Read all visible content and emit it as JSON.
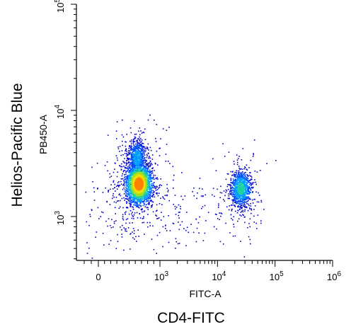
{
  "chart_data": {
    "type": "scatter",
    "title": "",
    "outer_xlabel": "CD4-FITC",
    "outer_ylabel": "Helios-Pacific Blue",
    "xlabel": "FITC-A",
    "ylabel": "PB450-A",
    "x_scale": "biexponential",
    "y_scale": "log",
    "xlim": [
      -300,
      1000000
    ],
    "ylim": [
      400,
      10000
    ],
    "x_ticks": [
      {
        "value": 0,
        "base": "0",
        "exp": ""
      },
      {
        "value": 1000,
        "base": "10",
        "exp": "3"
      },
      {
        "value": 10000,
        "base": "10",
        "exp": "4"
      },
      {
        "value": 100000,
        "base": "10",
        "exp": "5"
      },
      {
        "value": 1000000,
        "base": "10",
        "exp": "6"
      }
    ],
    "y_ticks": [
      {
        "value": 1000,
        "base": "10",
        "exp": "3"
      },
      {
        "value": 10000,
        "base": "10",
        "exp": "4"
      },
      {
        "value": 100000,
        "base": "10",
        "exp": "5"
      }
    ],
    "grid": false,
    "legend": "none",
    "colormap": [
      "#0000c8",
      "#0050ff",
      "#00a0ff",
      "#20d0a0",
      "#a0e020",
      "#f0e000",
      "#ff8000"
    ],
    "populations": [
      {
        "name": "",
        "x_center": 650,
        "y_center": 2050,
        "x_spread_decades": 0.11,
        "y_spread_decades": 0.09,
        "relative_count": 1.0
      },
      {
        "name": "",
        "x_center": 620,
        "y_center": 3600,
        "x_spread_decades": 0.08,
        "y_spread_decades": 0.08,
        "relative_count": 0.25
      },
      {
        "name": "",
        "x_center": 25000,
        "y_center": 1850,
        "x_spread_decades": 0.09,
        "y_spread_decades": 0.08,
        "relative_count": 0.38
      }
    ]
  }
}
